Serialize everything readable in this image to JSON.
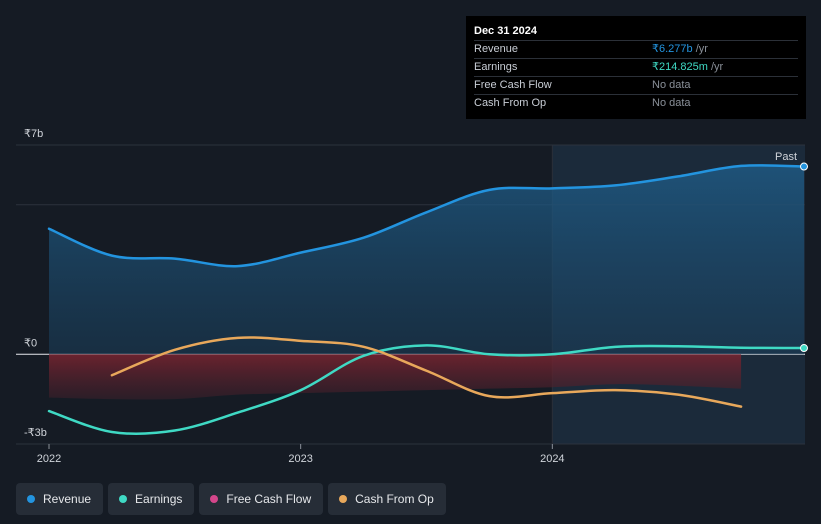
{
  "tooltip": {
    "date": "Dec 31 2024",
    "rows": [
      {
        "label": "Revenue",
        "value": "₹6.277b",
        "unit": " /yr"
      },
      {
        "label": "Earnings",
        "value": "₹214.825m",
        "unit": " /yr"
      },
      {
        "label": "Free Cash Flow",
        "value": "No data"
      },
      {
        "label": "Cash From Op",
        "value": "No data"
      }
    ]
  },
  "legend": [
    {
      "label": "Revenue",
      "color": "#2394df"
    },
    {
      "label": "Earnings",
      "color": "#3fd9c4"
    },
    {
      "label": "Free Cash Flow",
      "color": "#d4468b"
    },
    {
      "label": "Cash From Op",
      "color": "#e8a85b"
    }
  ],
  "chart_data": {
    "type": "line",
    "title": "",
    "xlabel": "",
    "ylabel": "",
    "x_ticks": [
      "2022",
      "2023",
      "2024"
    ],
    "y_ticks": [
      "₹7b",
      "₹0",
      "-₹3b"
    ],
    "ylim": [
      -3,
      7
    ],
    "xlim": [
      2022.0,
      2025.0
    ],
    "past_label": "Past",
    "series": [
      {
        "name": "Revenue",
        "color": "#2394df",
        "x": [
          2022.0,
          2022.25,
          2022.5,
          2022.75,
          2023.0,
          2023.25,
          2023.5,
          2023.75,
          2024.0,
          2024.25,
          2024.5,
          2024.75,
          2025.0
        ],
        "values": [
          4.2,
          3.3,
          3.2,
          2.95,
          3.4,
          3.9,
          4.75,
          5.5,
          5.55,
          5.65,
          5.95,
          6.3,
          6.28
        ]
      },
      {
        "name": "Earnings",
        "color": "#3fd9c4",
        "x": [
          2022.0,
          2022.25,
          2022.5,
          2022.75,
          2023.0,
          2023.25,
          2023.5,
          2023.75,
          2024.0,
          2024.25,
          2024.5,
          2024.75,
          2025.0
        ],
        "values": [
          -1.9,
          -2.6,
          -2.55,
          -1.95,
          -1.2,
          -0.05,
          0.3,
          0.0,
          0.0,
          0.25,
          0.27,
          0.22,
          0.21
        ]
      },
      {
        "name": "Free Cash Flow",
        "color": "#d4468b",
        "x": [
          2022.0,
          2022.25,
          2022.5,
          2022.75,
          2023.0,
          2023.25,
          2023.5,
          2023.75,
          2024.0,
          2024.25,
          2024.5,
          2024.75
        ],
        "values": [
          -1.45,
          -1.5,
          -1.5,
          -1.35,
          -1.3,
          -1.25,
          -1.2,
          -1.15,
          -1.1,
          -1.0,
          -1.05,
          -1.15
        ]
      },
      {
        "name": "Cash From Op",
        "color": "#e8a85b",
        "x": [
          2022.25,
          2022.5,
          2022.75,
          2023.0,
          2023.25,
          2023.5,
          2023.75,
          2024.0,
          2024.25,
          2024.5,
          2024.75
        ],
        "values": [
          -0.7,
          0.15,
          0.55,
          0.45,
          0.25,
          -0.55,
          -1.4,
          -1.3,
          -1.2,
          -1.35,
          -1.75
        ]
      }
    ]
  }
}
